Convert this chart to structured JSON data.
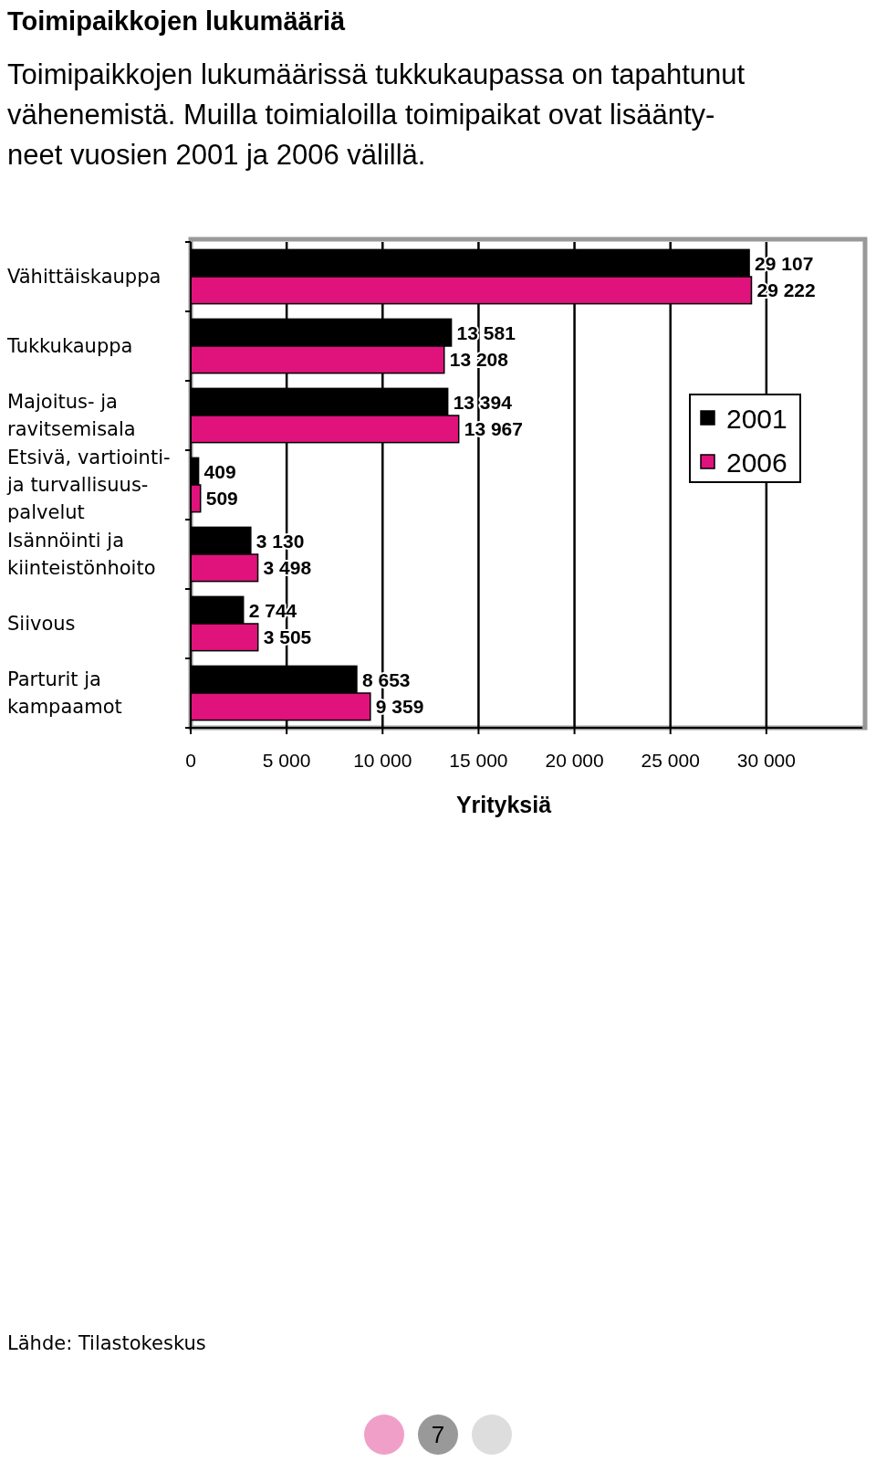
{
  "chart_data": {
    "type": "bar",
    "orientation": "horizontal",
    "title": "Toimipaikkojen lukumääriä",
    "subtitle": "Toimipaikkojen lukumäärissä tukkukaupassa on tapahtunut\nvähenemistä. Muilla toimialoilla toimipaikat ovat lisäänty-\nneet vuosien 2001 ja 2006 välillä.",
    "categories": [
      "Vähittäiskauppa",
      "Tukkukauppa",
      "Majoitus- ja\nravitsemisala",
      "Etsivä, vartiointi-\nja turvallisuus-\npalvelut",
      "Isännöinti ja\nkiinteistönhoito",
      "Siivous",
      "Parturit ja\nkampaamot"
    ],
    "series": [
      {
        "name": "2001",
        "color": "#000000",
        "values": [
          29107,
          13581,
          13394,
          409,
          3130,
          2744,
          8653
        ],
        "value_labels": [
          "29 107",
          "13 581",
          "13 394",
          "409",
          "3 130",
          "2 744",
          "8 653"
        ]
      },
      {
        "name": "2006",
        "color": "#e0127c",
        "values": [
          29222,
          13208,
          13967,
          509,
          3498,
          3505,
          9359
        ],
        "value_labels": [
          "29 222",
          "13 208",
          "13 967",
          "509",
          "3 498",
          "3 505",
          "9 359"
        ]
      }
    ],
    "xlim": [
      0,
      35000
    ],
    "xticks": [
      0,
      {
        "value": 5000,
        "label": "5 000"
      },
      {
        "value": 10000,
        "label": "10 000"
      },
      {
        "value": 15000,
        "label": "15 000"
      },
      {
        "value": 20000,
        "label": "20 000"
      },
      {
        "value": 25000,
        "label": "25 000"
      },
      {
        "value": 30000,
        "label": "30 000"
      }
    ],
    "xlabel": "Yrityksiä",
    "grid": "x",
    "legend": "top right",
    "annotations": [
      "Lähde: Tilastokeskus",
      "7"
    ]
  }
}
